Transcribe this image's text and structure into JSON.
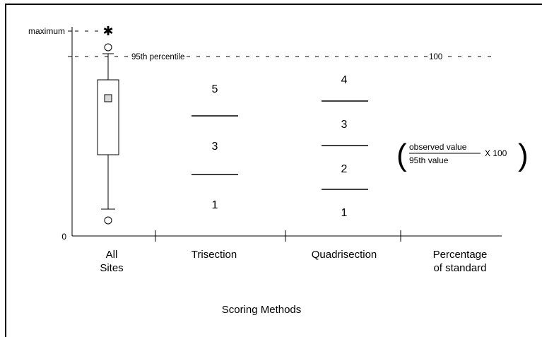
{
  "y_axis": {
    "maximum_label": "maximum",
    "zero_label": "0",
    "percentile_label": "95th percentile",
    "percentile_value_label": "100"
  },
  "columns": [
    {
      "line1": "All",
      "line2": "Sites"
    },
    {
      "line1": "Trisection",
      "line2": ""
    },
    {
      "line1": "Quadrisection",
      "line2": ""
    },
    {
      "line1": "Percentage",
      "line2": "of standard"
    }
  ],
  "x_axis_title": "Scoring Methods",
  "trisection_scores": [
    "5",
    "3",
    "1"
  ],
  "quadrisection_scores": [
    "4",
    "3",
    "2",
    "1"
  ],
  "formula": {
    "numerator": "observed value",
    "denominator": "95th value",
    "multiplier": "X 100"
  },
  "colors": {
    "ink": "#000000",
    "box_fill": "#ffffff",
    "mean_marker": "#d9d9d9"
  }
}
